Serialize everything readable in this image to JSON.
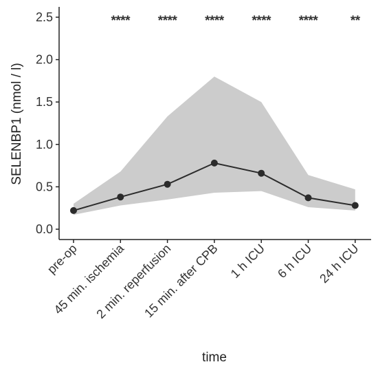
{
  "chart_data": {
    "type": "line",
    "title": "",
    "xlabel": "time",
    "ylabel": "SELENBP1 (nmol / l)",
    "categories": [
      "pre-op",
      "45 min. ischemia",
      "2 min. reperfusion",
      "15 min. after CPB",
      "1 h ICU",
      "6 h ICU",
      "24 h ICU"
    ],
    "series": [
      {
        "values": [
          0.22,
          0.38,
          0.53,
          0.78,
          0.66,
          0.37,
          0.28
        ]
      }
    ],
    "band": {
      "lower": [
        0.17,
        0.28,
        0.35,
        0.43,
        0.45,
        0.26,
        0.22
      ],
      "upper": [
        0.3,
        0.68,
        1.33,
        1.8,
        1.5,
        0.64,
        0.47
      ]
    },
    "significance": [
      "",
      "****",
      "****",
      "****",
      "****",
      "****",
      "**"
    ],
    "ylim": [
      -0.1,
      2.6
    ],
    "yticks": [
      0.0,
      0.5,
      1.0,
      1.5,
      2.0,
      2.5
    ],
    "ytick_labels": [
      "0.0",
      "0.5",
      "1.0",
      "1.5",
      "2.0",
      "2.5"
    ],
    "grid": false,
    "colors": {
      "line": "#2b2b2b",
      "band": "#cccccc",
      "axis": "#222222"
    }
  }
}
